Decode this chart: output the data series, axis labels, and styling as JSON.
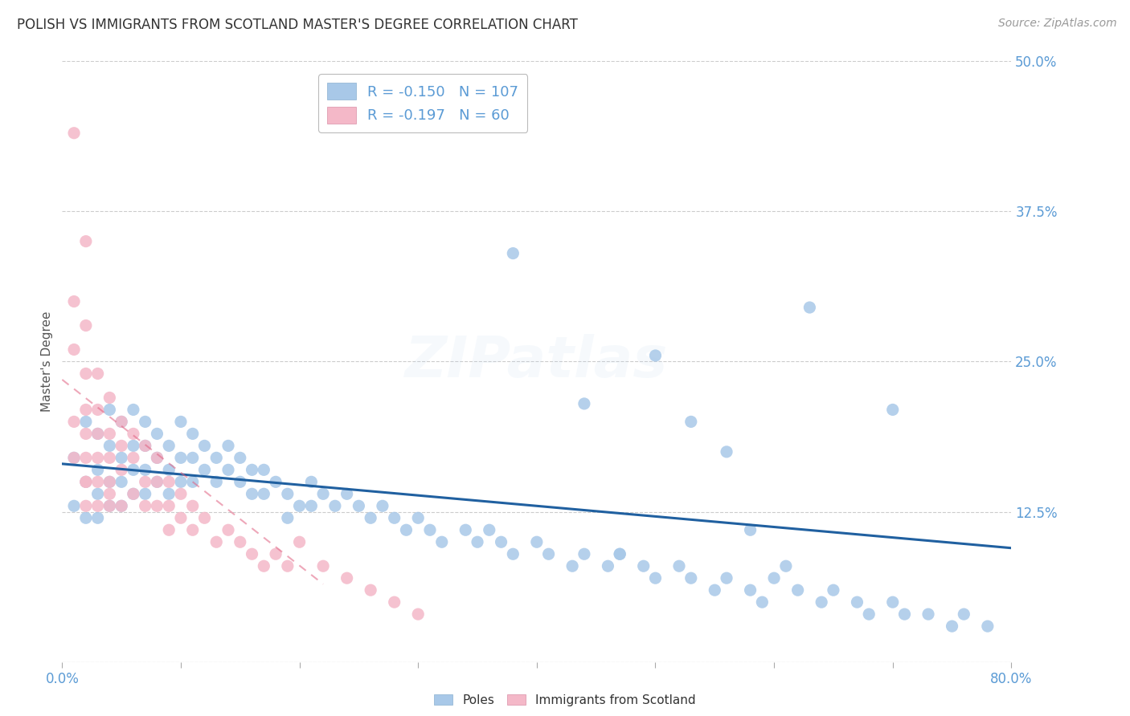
{
  "title": "POLISH VS IMMIGRANTS FROM SCOTLAND MASTER'S DEGREE CORRELATION CHART",
  "source": "Source: ZipAtlas.com",
  "ylabel": "Master's Degree",
  "watermark": "ZIPatlas",
  "legend": {
    "blue_r": "-0.150",
    "blue_n": "107",
    "pink_r": "-0.197",
    "pink_n": "60",
    "blue_label": "Poles",
    "pink_label": "Immigrants from Scotland"
  },
  "xlim": [
    0.0,
    0.8
  ],
  "ylim": [
    0.0,
    0.5
  ],
  "ytick_vals": [
    0.0,
    0.125,
    0.25,
    0.375,
    0.5
  ],
  "ytick_labels": [
    "",
    "12.5%",
    "25.0%",
    "37.5%",
    "50.0%"
  ],
  "blue_color": "#a8c8e8",
  "pink_color": "#f4b8c8",
  "trend_blue_color": "#2060a0",
  "trend_pink_color": "#e06080",
  "background_color": "#ffffff",
  "grid_color": "#cccccc",
  "tick_color": "#5b9bd5",
  "title_color": "#333333",
  "source_color": "#999999",
  "ylabel_color": "#555555",
  "blue_points_x": [
    0.01,
    0.01,
    0.02,
    0.02,
    0.02,
    0.03,
    0.03,
    0.03,
    0.03,
    0.04,
    0.04,
    0.04,
    0.04,
    0.05,
    0.05,
    0.05,
    0.05,
    0.06,
    0.06,
    0.06,
    0.06,
    0.07,
    0.07,
    0.07,
    0.07,
    0.08,
    0.08,
    0.08,
    0.09,
    0.09,
    0.09,
    0.1,
    0.1,
    0.1,
    0.11,
    0.11,
    0.11,
    0.12,
    0.12,
    0.13,
    0.13,
    0.14,
    0.14,
    0.15,
    0.15,
    0.16,
    0.16,
    0.17,
    0.17,
    0.18,
    0.19,
    0.19,
    0.2,
    0.21,
    0.21,
    0.22,
    0.23,
    0.24,
    0.25,
    0.26,
    0.27,
    0.28,
    0.29,
    0.3,
    0.31,
    0.32,
    0.34,
    0.35,
    0.36,
    0.37,
    0.38,
    0.4,
    0.41,
    0.43,
    0.44,
    0.46,
    0.47,
    0.49,
    0.5,
    0.52,
    0.53,
    0.55,
    0.56,
    0.58,
    0.59,
    0.6,
    0.62,
    0.64,
    0.65,
    0.67,
    0.68,
    0.7,
    0.71,
    0.73,
    0.75,
    0.76,
    0.78,
    0.5,
    0.38,
    0.44,
    0.56,
    0.63,
    0.7,
    0.58,
    0.47,
    0.53,
    0.61
  ],
  "blue_points_y": [
    0.17,
    0.13,
    0.2,
    0.15,
    0.12,
    0.19,
    0.16,
    0.14,
    0.12,
    0.21,
    0.18,
    0.15,
    0.13,
    0.2,
    0.17,
    0.15,
    0.13,
    0.21,
    0.18,
    0.16,
    0.14,
    0.2,
    0.18,
    0.16,
    0.14,
    0.19,
    0.17,
    0.15,
    0.18,
    0.16,
    0.14,
    0.2,
    0.17,
    0.15,
    0.19,
    0.17,
    0.15,
    0.18,
    0.16,
    0.17,
    0.15,
    0.18,
    0.16,
    0.17,
    0.15,
    0.16,
    0.14,
    0.16,
    0.14,
    0.15,
    0.14,
    0.12,
    0.13,
    0.15,
    0.13,
    0.14,
    0.13,
    0.14,
    0.13,
    0.12,
    0.13,
    0.12,
    0.11,
    0.12,
    0.11,
    0.1,
    0.11,
    0.1,
    0.11,
    0.1,
    0.09,
    0.1,
    0.09,
    0.08,
    0.09,
    0.08,
    0.09,
    0.08,
    0.07,
    0.08,
    0.07,
    0.06,
    0.07,
    0.06,
    0.05,
    0.07,
    0.06,
    0.05,
    0.06,
    0.05,
    0.04,
    0.05,
    0.04,
    0.04,
    0.03,
    0.04,
    0.03,
    0.255,
    0.34,
    0.215,
    0.175,
    0.295,
    0.21,
    0.11,
    0.09,
    0.2,
    0.08
  ],
  "pink_points_x": [
    0.01,
    0.01,
    0.01,
    0.01,
    0.01,
    0.02,
    0.02,
    0.02,
    0.02,
    0.02,
    0.02,
    0.02,
    0.03,
    0.03,
    0.03,
    0.03,
    0.03,
    0.04,
    0.04,
    0.04,
    0.04,
    0.04,
    0.05,
    0.05,
    0.05,
    0.05,
    0.06,
    0.06,
    0.06,
    0.07,
    0.07,
    0.07,
    0.08,
    0.08,
    0.08,
    0.09,
    0.09,
    0.09,
    0.1,
    0.1,
    0.11,
    0.11,
    0.12,
    0.13,
    0.14,
    0.15,
    0.16,
    0.17,
    0.18,
    0.19,
    0.2,
    0.22,
    0.24,
    0.26,
    0.28,
    0.3,
    0.02,
    0.02,
    0.03,
    0.04
  ],
  "pink_points_y": [
    0.44,
    0.3,
    0.26,
    0.2,
    0.17,
    0.35,
    0.28,
    0.24,
    0.21,
    0.19,
    0.17,
    0.15,
    0.24,
    0.21,
    0.19,
    0.17,
    0.15,
    0.22,
    0.19,
    0.17,
    0.15,
    0.13,
    0.2,
    0.18,
    0.16,
    0.13,
    0.19,
    0.17,
    0.14,
    0.18,
    0.15,
    0.13,
    0.17,
    0.15,
    0.13,
    0.15,
    0.13,
    0.11,
    0.14,
    0.12,
    0.13,
    0.11,
    0.12,
    0.1,
    0.11,
    0.1,
    0.09,
    0.08,
    0.09,
    0.08,
    0.1,
    0.08,
    0.07,
    0.06,
    0.05,
    0.04,
    0.15,
    0.13,
    0.13,
    0.14
  ],
  "blue_trend_x": [
    0.0,
    0.8
  ],
  "blue_trend_y": [
    0.165,
    0.095
  ],
  "pink_trend_x": [
    0.0,
    0.22
  ],
  "pink_trend_y": [
    0.235,
    0.065
  ],
  "marker_size": 120,
  "title_fontsize": 12,
  "axis_label_fontsize": 11,
  "tick_fontsize": 12,
  "legend_fontsize": 13,
  "source_fontsize": 10,
  "watermark_fontsize": 52,
  "watermark_alpha": 0.12
}
